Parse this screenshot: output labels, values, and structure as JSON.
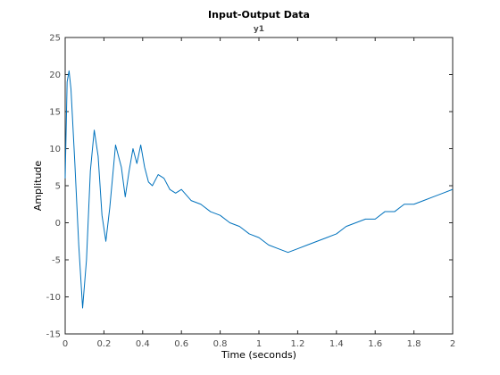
{
  "chart_data": {
    "type": "line",
    "title": "Input-Output Data",
    "subtitle": "y1",
    "xlabel": "Time (seconds)",
    "ylabel": "Amplitude",
    "xlim": [
      0,
      2
    ],
    "ylim": [
      -15,
      25
    ],
    "xticks": [
      "0",
      "0.2",
      "0.4",
      "0.6",
      "0.8",
      "1",
      "1.2",
      "1.4",
      "1.6",
      "1.8",
      "2"
    ],
    "yticks": [
      "-15",
      "-10",
      "-5",
      "0",
      "5",
      "10",
      "15",
      "20",
      "25"
    ],
    "grid": false,
    "series": [
      {
        "color": "#0072bd",
        "x": [
          0,
          0.01,
          0.02,
          0.03,
          0.05,
          0.07,
          0.09,
          0.11,
          0.13,
          0.15,
          0.17,
          0.19,
          0.21,
          0.23,
          0.26,
          0.29,
          0.31,
          0.33,
          0.35,
          0.37,
          0.39,
          0.41,
          0.43,
          0.45,
          0.48,
          0.51,
          0.54,
          0.57,
          0.6,
          0.65,
          0.7,
          0.75,
          0.8,
          0.85,
          0.9,
          0.95,
          1.0,
          1.05,
          1.1,
          1.15,
          1.2,
          1.25,
          1.3,
          1.35,
          1.4,
          1.45,
          1.5,
          1.55,
          1.6,
          1.65,
          1.7,
          1.75,
          1.8,
          1.85,
          1.9,
          1.95,
          2.0
        ],
        "y": [
          6,
          19,
          20.5,
          18,
          8,
          -3,
          -11.5,
          -5,
          7,
          12.5,
          9,
          1,
          -2.5,
          2,
          10.5,
          7.5,
          3.5,
          7,
          10,
          8,
          10.5,
          7.5,
          5.5,
          5,
          6.5,
          6,
          4.5,
          4,
          4.5,
          3,
          2.5,
          1.5,
          1,
          0,
          -0.5,
          -1.5,
          -2,
          -3,
          -3.5,
          -4,
          -3.5,
          -3,
          -2.5,
          -2,
          -1.5,
          -0.5,
          0,
          0.5,
          0.5,
          1.5,
          1.5,
          2.5,
          2.5,
          3,
          3.5,
          4,
          4.5
        ]
      }
    ]
  }
}
